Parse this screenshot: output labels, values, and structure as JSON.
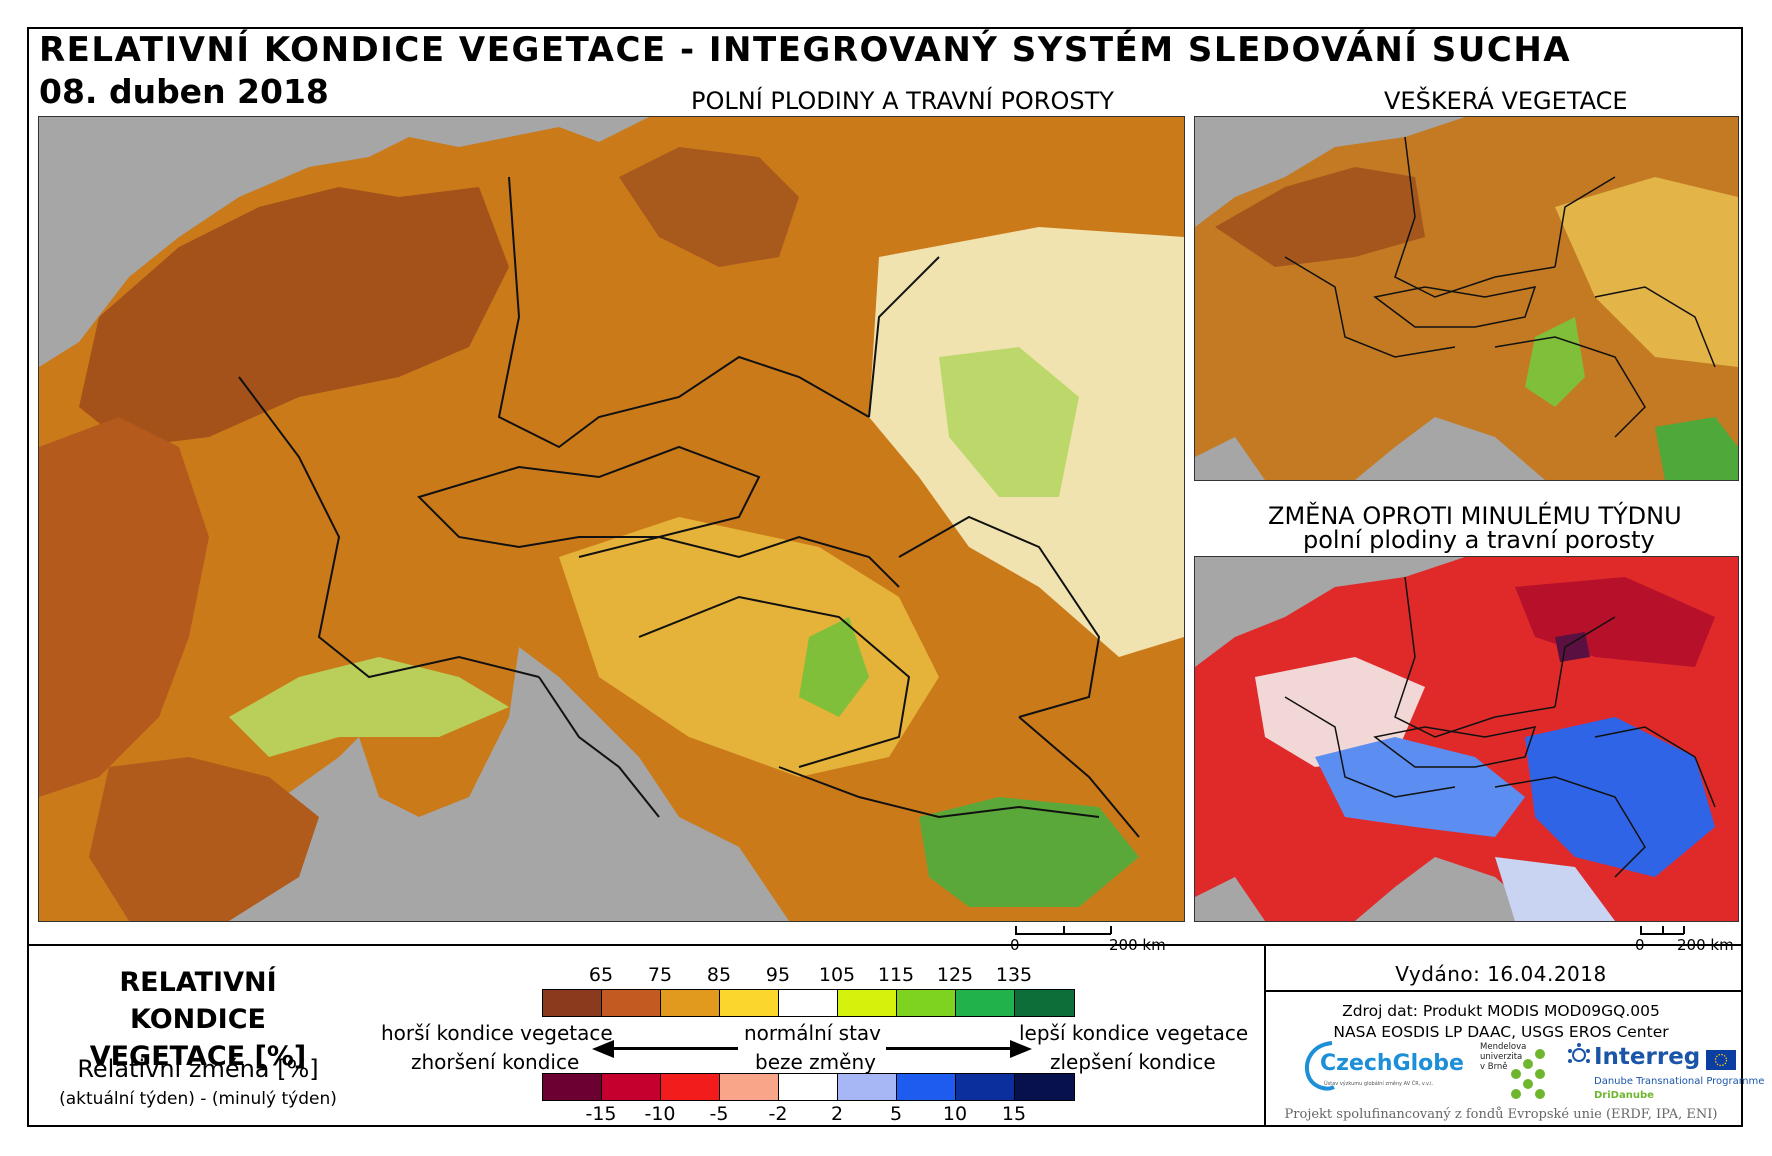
{
  "header": {
    "title": "RELATIVNÍ KONDICE VEGETACE - INTEGROVANÝ SYSTÉM SLEDOVÁNÍ SUCHA",
    "date": "08. duben 2018"
  },
  "panels": {
    "main_title": "POLNÍ PLODINY A TRAVNÍ POROSTY",
    "all_veg_title": "VEŠKERÁ VEGETACE",
    "change_title_1": "ZMĚNA OPROTI MINULÉMU TÝDNU",
    "change_title_2": "polní plodiny a travní porosty"
  },
  "scalebar": {
    "zero": "0",
    "label": "200 km"
  },
  "legend": {
    "title_1": "RELATIVNÍ KONDICE",
    "title_2": "VEGETACE [%]",
    "sub_1": "Relativní změna [%]",
    "sub_2": "(aktuální týden) - (minulý týden)",
    "condition_ticks": [
      "65",
      "75",
      "85",
      "95",
      "105",
      "115",
      "125",
      "135"
    ],
    "condition_colors": [
      "#8b3a1e",
      "#c35a22",
      "#e19a1e",
      "#fbd72e",
      "#ffffff",
      "#d4f20c",
      "#7ed321",
      "#22b24c",
      "#0e6e3a"
    ],
    "change_ticks": [
      "-15",
      "-10",
      "-5",
      "-2",
      "2",
      "5",
      "10",
      "15"
    ],
    "change_colors": [
      "#6b0033",
      "#c4002e",
      "#f31c1c",
      "#f9a58a",
      "#ffffff",
      "#a7b7f5",
      "#1e5cf0",
      "#0b2f9c",
      "#07114c"
    ],
    "worse_condition": "horší kondice vegetace",
    "normal_state": "normální stav",
    "better_condition": "lepší kondice vegetace",
    "worsening": "zhoršení kondice",
    "no_change": "beze změny",
    "improvement": "zlepšení kondice"
  },
  "info": {
    "issued": "Vydáno: 16.04.2018",
    "source_1": "Zdroj dat: Produkt MODIS MOD09GQ.005",
    "source_2": "NASA EOSDIS LP DAAC, USGS EROS Center",
    "logo_czechglobe": "CzechGlobe",
    "logo_czechglobe_sub": "Ústav výzkumu globální změny AV ČR, v.v.i.",
    "logo_mendel": "Mendelova univerzita v Brně",
    "logo_interreg": "Interreg",
    "logo_interreg_sub": "Danube Transnational Programme",
    "logo_dridanube": "DriDanube",
    "footer": "Projekt spolufinancovaný z fondů Evropské unie (ERDF, IPA, ENI)"
  }
}
